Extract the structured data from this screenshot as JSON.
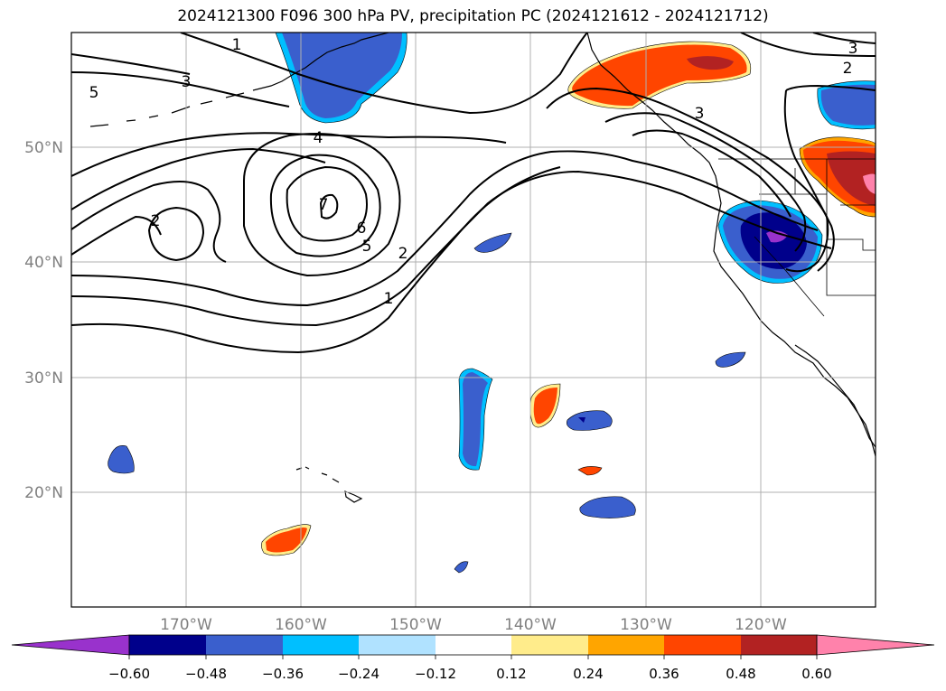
{
  "title": "2024121300 F096 300 hPa PV, precipitation PC (2024121612 - 2024121712)",
  "map": {
    "lon_range": [
      -180,
      -110
    ],
    "lat_range": [
      10,
      60
    ],
    "lon_ticks": [
      {
        "lon": -170,
        "label": "170°W"
      },
      {
        "lon": -160,
        "label": "160°W"
      },
      {
        "lon": -150,
        "label": "150°W"
      },
      {
        "lon": -140,
        "label": "140°W"
      },
      {
        "lon": -130,
        "label": "130°W"
      },
      {
        "lon": -120,
        "label": "120°W"
      }
    ],
    "lat_ticks": [
      {
        "lat": 20,
        "label": "20°N"
      },
      {
        "lat": 30,
        "label": "30°N"
      },
      {
        "lat": 40,
        "label": "40°N"
      },
      {
        "lat": 50,
        "label": "50°N"
      }
    ],
    "tick_label_color": "#808080",
    "grid": true
  },
  "contour_labels": [
    {
      "text": "1",
      "lon": -165,
      "lat": 58.5
    },
    {
      "text": "5",
      "lon": -178,
      "lat": 54.8
    },
    {
      "text": "3",
      "lon": -170,
      "lat": 55.8
    },
    {
      "text": "4",
      "lon": -158,
      "lat": 50.8
    },
    {
      "text": "2",
      "lon": -172.5,
      "lat": 43.5
    },
    {
      "text": "7",
      "lon": -159,
      "lat": 45.5
    },
    {
      "text": "6",
      "lon": -155.5,
      "lat": 42.8
    },
    {
      "text": "5",
      "lon": -156.5,
      "lat": 41.5
    },
    {
      "text": "2",
      "lon": -151,
      "lat": 40.8
    },
    {
      "text": "1",
      "lon": -152,
      "lat": 36.8
    },
    {
      "text": "3",
      "lon": -127,
      "lat": 53.3
    },
    {
      "text": "3",
      "lon": -112,
      "lat": 59.0
    },
    {
      "text": "2",
      "lon": -112.5,
      "lat": 57.3
    }
  ],
  "colorbar": {
    "ticks": [
      "−0.60",
      "−0.48",
      "−0.36",
      "−0.24",
      "−0.12",
      "0.12",
      "0.24",
      "0.36",
      "0.48",
      "0.60"
    ],
    "colors": [
      "#9932cc",
      "#00008b",
      "#3a5fcd",
      "#00bfff",
      "#b0e2ff",
      "#ffffff",
      "#ffec8b",
      "#ffa500",
      "#ff4500",
      "#b22222",
      "#ff82ab"
    ]
  }
}
